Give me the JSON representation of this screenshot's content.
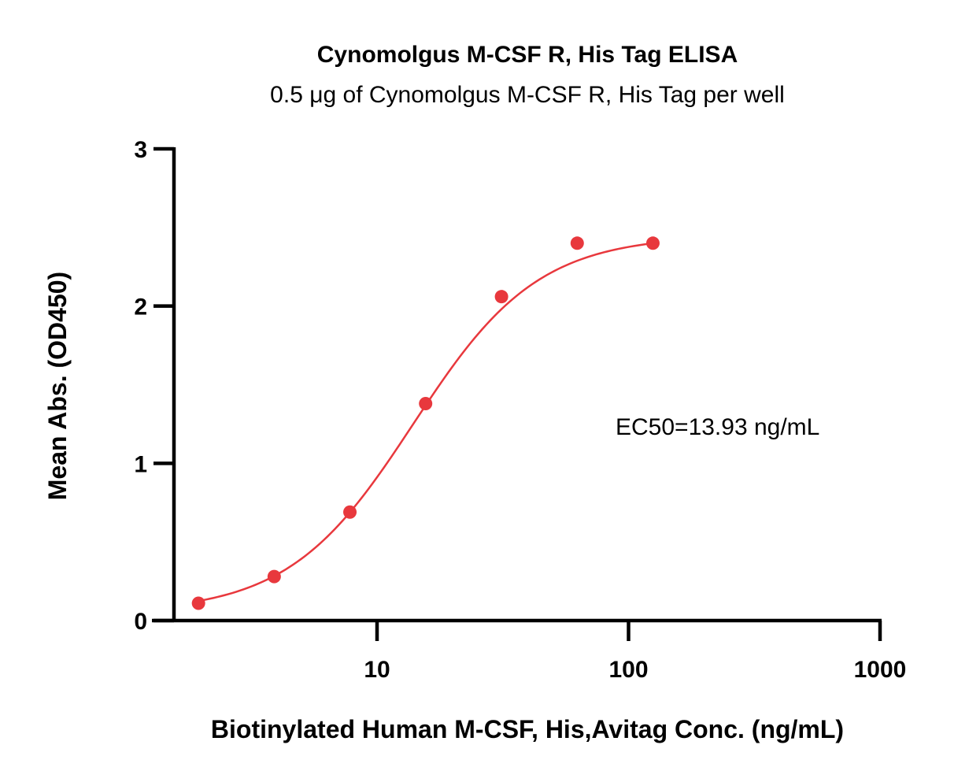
{
  "chart_data": {
    "type": "scatter",
    "title": "Cynomolgus M-CSF R, His Tag ELISA",
    "subtitle": "0.5 μg of Cynomolgus M-CSF R, His Tag per well",
    "xlabel": "Biotinylated Human M-CSF, His,Avitag Conc. (ng/mL)",
    "ylabel": "Mean Abs. (OD450)",
    "x_scale": "log",
    "xlim": [
      1,
      1000
    ],
    "ylim": [
      0,
      3
    ],
    "x_ticks": [
      {
        "value": 10,
        "label": "10"
      },
      {
        "value": 100,
        "label": "100"
      },
      {
        "value": 1000,
        "label": "1000"
      }
    ],
    "y_ticks": [
      {
        "value": 0,
        "label": "0"
      },
      {
        "value": 1,
        "label": "1"
      },
      {
        "value": 2,
        "label": "2"
      },
      {
        "value": 3,
        "label": "3"
      }
    ],
    "series": [
      {
        "points": [
          {
            "x": 1.95,
            "y": 0.11
          },
          {
            "x": 3.9,
            "y": 0.28
          },
          {
            "x": 7.8,
            "y": 0.69
          },
          {
            "x": 15.6,
            "y": 1.38
          },
          {
            "x": 31.25,
            "y": 2.06
          },
          {
            "x": 62.5,
            "y": 2.4
          },
          {
            "x": 125,
            "y": 2.4
          }
        ],
        "fit": {
          "model": "4PL",
          "bottom": 0.05,
          "top": 2.45,
          "ec50": 13.93,
          "hill": 1.75,
          "x_range": [
            1.95,
            125
          ]
        }
      }
    ],
    "annotation": "EC50=13.93 ng/mL",
    "color": "#e8383d",
    "grid": false,
    "legend": "none"
  }
}
